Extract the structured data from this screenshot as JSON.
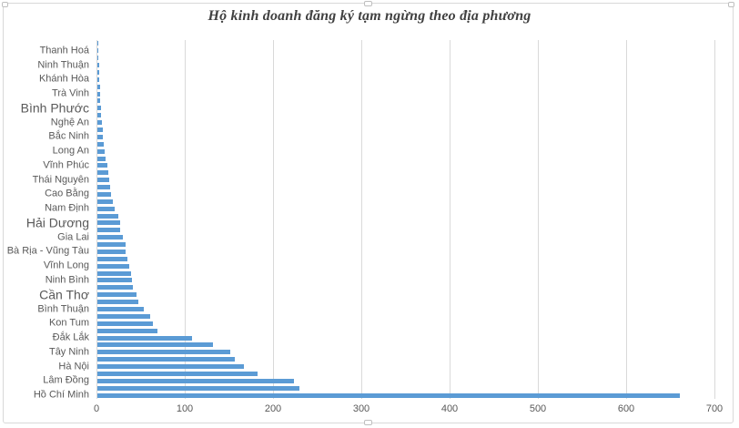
{
  "chart_data": {
    "type": "bar",
    "orientation": "horizontal",
    "title": "Hộ kinh doanh đăng ký tạm ngừng theo địa phương",
    "categories": [
      "Thanh Hoá",
      "Ninh Thuận",
      "Khánh Hòa",
      "Trà Vinh",
      "Bình Phước",
      "Nghệ An",
      "Bắc Ninh",
      "Long An",
      "Vĩnh Phúc",
      "Thái Nguyên",
      "Cao Bằng",
      "Nam Định",
      "Hải Dương",
      "Gia Lai",
      "Bà Rịa - Vũng Tàu",
      "Vĩnh Long",
      "Ninh Bình",
      "Cần Thơ",
      "Bình Thuận",
      "Kon Tum",
      "Đắk Lắk",
      "Tây Ninh",
      "Hà Nội",
      "Lâm Đồng",
      "Hồ Chí Minh"
    ],
    "series": [
      {
        "name": "series-upper-bar",
        "values": [
          1,
          1,
          2,
          3,
          3,
          4,
          6,
          7,
          9,
          12,
          14,
          18,
          24,
          26,
          32,
          34,
          38,
          40,
          46,
          60,
          68,
          131,
          156,
          181,
          229
        ]
      },
      {
        "name": "series-lower-bar",
        "values": [
          1,
          2,
          2,
          3,
          4,
          5,
          6,
          8,
          11,
          13,
          15,
          20,
          26,
          29,
          32,
          36,
          39,
          44,
          53,
          63,
          107,
          151,
          166,
          223,
          660
        ]
      }
    ],
    "xlim": [
      0,
      700
    ],
    "x_ticks": [
      "0",
      "100",
      "200",
      "300",
      "400",
      "500",
      "600",
      "700"
    ],
    "grid": true,
    "legend": false,
    "large_font_categories": [
      "Bình Phước",
      "Hải Dương",
      "Cần Thơ"
    ]
  },
  "theme": {
    "bar_color": "#5B9BD5",
    "gridline_color": "#D9D9D9",
    "axis_text_color": "#595959",
    "title_color": "#404040",
    "chart_border_color": "#D9D9D9",
    "background": "#FFFFFF"
  }
}
